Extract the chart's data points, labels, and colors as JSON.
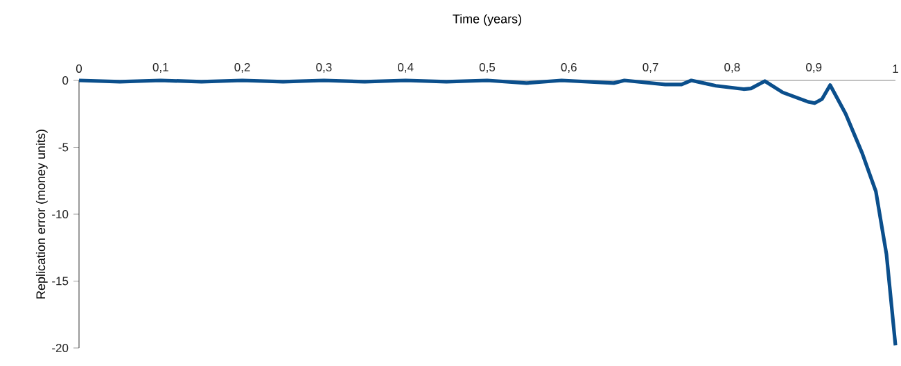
{
  "chart_data": {
    "type": "line",
    "xlabel": "Time (years)",
    "ylabel": "Replication error (money units)",
    "xlim": [
      0,
      1
    ],
    "ylim": [
      -20,
      0
    ],
    "xticks": [
      0,
      {
        "value": 0.1,
        "label": "0,1"
      },
      {
        "value": 0.2,
        "label": "0,2"
      },
      {
        "value": 0.3,
        "label": "0,3"
      },
      {
        "value": 0.4,
        "label": "0,4"
      },
      {
        "value": 0.5,
        "label": "0,5"
      },
      {
        "value": 0.6,
        "label": "0,6"
      },
      {
        "value": 0.7,
        "label": "0,7"
      },
      {
        "value": 0.8,
        "label": "0,8"
      },
      {
        "value": 0.9,
        "label": "0,9"
      },
      1
    ],
    "yticks": [
      0,
      -5,
      -10,
      -15,
      -20
    ],
    "series": [
      {
        "color": "#0b4f8c",
        "x": [
          0,
          0.05,
          0.1,
          0.15,
          0.2,
          0.25,
          0.3,
          0.35,
          0.4,
          0.45,
          0.5,
          0.548,
          0.591,
          0.655,
          0.668,
          0.718,
          0.738,
          0.75,
          0.78,
          0.814,
          0.823,
          0.84,
          0.862,
          0.893,
          0.901,
          0.91,
          0.92,
          0.939,
          0.959,
          0.976,
          0.989,
          1.0
        ],
        "values": [
          0,
          -0.1,
          0,
          -0.1,
          0,
          -0.1,
          0,
          -0.1,
          0,
          -0.1,
          0,
          -0.2,
          0,
          -0.2,
          0,
          -0.3,
          -0.3,
          0,
          -0.4,
          -0.65,
          -0.6,
          -0.05,
          -0.9,
          -1.6,
          -1.7,
          -1.4,
          -0.35,
          -2.5,
          -5.4,
          -8.3,
          -13,
          -19.8
        ]
      }
    ]
  }
}
